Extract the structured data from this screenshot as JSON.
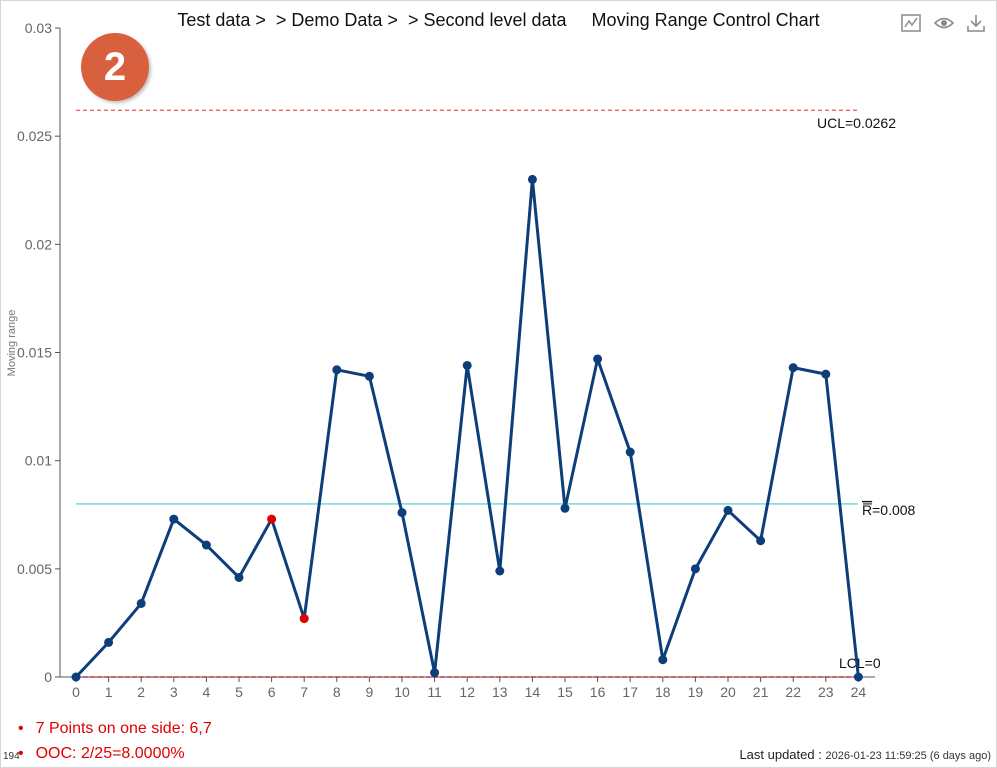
{
  "header": {
    "title": "Test data >  > Demo Data >  > Second level data     Moving Range Control Chart",
    "badge": "2",
    "icons": [
      "chart-line-icon",
      "eye-icon",
      "download-icon"
    ]
  },
  "chart_data": {
    "type": "line",
    "ylabel": "Moving range",
    "ylim": [
      0,
      0.03
    ],
    "yticks": [
      "0",
      "0.005",
      "0.01",
      "0.015",
      "0.02",
      "0.025",
      "0.03"
    ],
    "ytick_values": [
      0,
      0.005,
      0.01,
      0.015,
      0.02,
      0.025,
      0.03
    ],
    "x": [
      0,
      1,
      2,
      3,
      4,
      5,
      6,
      7,
      8,
      9,
      10,
      11,
      12,
      13,
      14,
      15,
      16,
      17,
      18,
      19,
      20,
      21,
      22,
      23,
      24
    ],
    "values": [
      0,
      0.0016,
      0.0034,
      0.0073,
      0.0061,
      0.0046,
      0.0073,
      0.0027,
      0.0142,
      0.0139,
      0.0076,
      0.0002,
      0.0144,
      0.0049,
      0.023,
      0.0078,
      0.0147,
      0.0104,
      0.0008,
      0.005,
      0.0077,
      0.0063,
      0.0143,
      0.014,
      0
    ],
    "highlighted_points": [
      6,
      7
    ],
    "control_lines": {
      "ucl": {
        "value": 0.0262,
        "label": "UCL=0.0262"
      },
      "center": {
        "value": 0.008,
        "label": "=0.008",
        "symbol": "R"
      },
      "lcl": {
        "value": 0,
        "label": "LCL=0"
      }
    },
    "colors": {
      "series": "#0d3e7a",
      "highlight": "#e00000",
      "ucl": "#e03030",
      "center": "#44cccc",
      "lcl": "#aa1111"
    },
    "grid": false
  },
  "rules": [
    "7 Points on one side: 6,7",
    "OOC: 2/25=8.0000%"
  ],
  "footer": {
    "corner_number": "194",
    "updated_label": "Last updated :",
    "updated_value": "2026-01-23 11:59:25 (6 days ago)"
  }
}
